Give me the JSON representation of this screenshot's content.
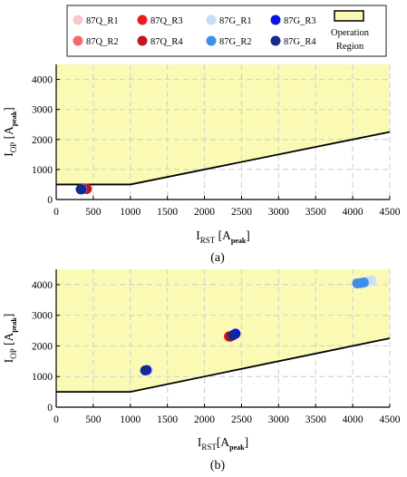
{
  "legend": {
    "entries": [
      {
        "label": "87Q_R1",
        "color": "#f8c8cb"
      },
      {
        "label": "87Q_R2",
        "color": "#f2696f"
      },
      {
        "label": "87Q_R3",
        "color": "#ec1c24"
      },
      {
        "label": "87Q_R4",
        "color": "#c0161c"
      },
      {
        "label": "87G_R1",
        "color": "#c6def8"
      },
      {
        "label": "87G_R2",
        "color": "#3f8ee8"
      },
      {
        "label": "87G_R3",
        "color": "#0b15e6"
      },
      {
        "label": "87G_R4",
        "color": "#13298e"
      }
    ],
    "region_label_line1": "Operation",
    "region_label_line2": "Region",
    "region_fill": "#fafab4"
  },
  "chart_data": [
    {
      "type": "scatter",
      "caption": "(a)",
      "xlabel": {
        "main": "I",
        "sub": "RST",
        "unit_open": " [A",
        "unit_sub": "peak",
        "unit_close": "]"
      },
      "ylabel": {
        "main": "I",
        "sub": "OP",
        "unit_open": " [A",
        "unit_sub": "peak",
        "unit_close": "]"
      },
      "xlim": [
        0,
        4500
      ],
      "ylim": [
        0,
        4500
      ],
      "xticks": [
        0,
        500,
        1000,
        1500,
        2000,
        2500,
        3000,
        3500,
        4000,
        4500
      ],
      "yticks": [
        0,
        1000,
        2000,
        3000,
        4000
      ],
      "grid": true,
      "characteristic": [
        [
          0,
          500
        ],
        [
          1000,
          500
        ],
        [
          4500,
          2250
        ]
      ],
      "series": [
        {
          "name": "87Q_R1",
          "points": [
            [
              390,
              350
            ]
          ]
        },
        {
          "name": "87Q_R2",
          "points": [
            [
              400,
              350
            ]
          ]
        },
        {
          "name": "87Q_R3",
          "points": [
            [
              415,
              355
            ]
          ]
        },
        {
          "name": "87Q_R4",
          "points": [
            [
              410,
              350
            ]
          ]
        },
        {
          "name": "87G_R1",
          "points": [
            [
              345,
              340
            ]
          ]
        },
        {
          "name": "87G_R2",
          "points": [
            [
              350,
              345
            ]
          ]
        },
        {
          "name": "87G_R3",
          "points": [
            [
              340,
              340
            ]
          ]
        },
        {
          "name": "87G_R4",
          "points": [
            [
              330,
              340
            ]
          ]
        }
      ]
    },
    {
      "type": "scatter",
      "caption": "(b)",
      "xlabel": {
        "main": "I",
        "sub": "RST",
        "unit_open": "[A",
        "unit_sub": "peak",
        "unit_close": "]"
      },
      "ylabel": {
        "main": "I",
        "sub": "OP",
        "unit_open": " [A",
        "unit_sub": "peak",
        "unit_close": "]"
      },
      "xlim": [
        0,
        4500
      ],
      "ylim": [
        0,
        4500
      ],
      "xticks": [
        0,
        500,
        1000,
        1500,
        2000,
        2500,
        3000,
        3500,
        4000,
        4500
      ],
      "yticks": [
        0,
        1000,
        2000,
        3000,
        4000
      ],
      "grid": true,
      "characteristic": [
        [
          0,
          500
        ],
        [
          1000,
          500
        ],
        [
          4500,
          2250
        ]
      ],
      "series": [
        {
          "name": "87Q_R1",
          "points": [
            [
              1240,
              1220
            ]
          ]
        },
        {
          "name": "87Q_R2",
          "points": [
            [
              2340,
              2320
            ]
          ]
        },
        {
          "name": "87Q_R3",
          "points": [
            [
              2330,
              2310
            ]
          ]
        },
        {
          "name": "87Q_R4",
          "points": [
            [
              2345,
              2300
            ]
          ]
        },
        {
          "name": "87G_R1",
          "points": [
            [
              4250,
              4130
            ],
            [
              4200,
              4100
            ],
            [
              4120,
              4060
            ],
            [
              4170,
              4080
            ]
          ]
        },
        {
          "name": "87G_R2",
          "points": [
            [
              4100,
              4050
            ],
            [
              4150,
              4070
            ],
            [
              4060,
              4040
            ]
          ]
        },
        {
          "name": "87G_R3",
          "points": [
            [
              2420,
              2400
            ],
            [
              2390,
              2360
            ],
            [
              1220,
              1210
            ]
          ]
        },
        {
          "name": "87G_R4",
          "points": [
            [
              1200,
              1200
            ],
            [
              2380,
              2340
            ]
          ]
        }
      ]
    }
  ]
}
